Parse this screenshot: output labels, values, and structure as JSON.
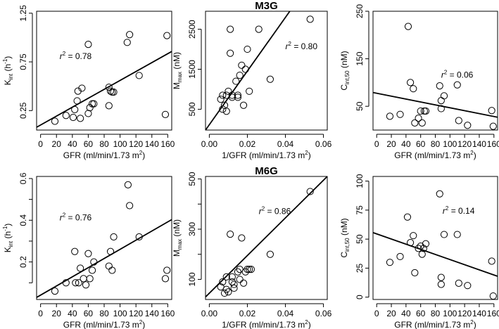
{
  "chart_data": [
    {
      "id": "m3g-kint",
      "type": "scatter",
      "group_title": "",
      "xlabel": {
        "main": "GFR (ml/min/1.73 m",
        "sup": "2",
        "tail": ")"
      },
      "ylabel": {
        "main": "K",
        "sub": "int",
        "tail": " (h",
        "sup": "-1",
        "end": ")"
      },
      "xlim": [
        -5,
        165
      ],
      "ylim": [
        0.05,
        1.27
      ],
      "xticks": [
        0,
        20,
        40,
        60,
        80,
        100,
        120,
        140,
        160
      ],
      "yticks": [
        0.25,
        0.75,
        1.25
      ],
      "yticklabels": [
        "0.25",
        "0.75",
        "1.25"
      ],
      "r2_label": "= 0.78",
      "r2_pos": [
        24,
        0.78
      ],
      "fit": {
        "x": [
          -5,
          165
        ],
        "y": [
          0.079,
          0.857
        ]
      },
      "points": [
        [
          18,
          0.14
        ],
        [
          32,
          0.2
        ],
        [
          41,
          0.18
        ],
        [
          43,
          0.26
        ],
        [
          46,
          0.35
        ],
        [
          47,
          0.45
        ],
        [
          50,
          0.17
        ],
        [
          52,
          0.48
        ],
        [
          60,
          0.93
        ],
        [
          60,
          0.22
        ],
        [
          62,
          0.28
        ],
        [
          65,
          0.32
        ],
        [
          67,
          0.32
        ],
        [
          86,
          0.49
        ],
        [
          88,
          0.45
        ],
        [
          90,
          0.44
        ],
        [
          92,
          0.44
        ],
        [
          86,
          0.3
        ],
        [
          109,
          0.95
        ],
        [
          112,
          1.03
        ],
        [
          124,
          0.61
        ],
        [
          157,
          0.21
        ],
        [
          159,
          1.02
        ]
      ]
    },
    {
      "id": "m3g-mmax",
      "type": "scatter",
      "group_title": "M3G",
      "xlabel": {
        "main": "1/GFR (ml/min/1.73 m",
        "sup": "2",
        "tail": ")"
      },
      "ylabel": {
        "main": "M",
        "sub": "max",
        "tail": " (nM)",
        "sup": "",
        "end": ""
      },
      "xlim": [
        -0.002,
        0.062
      ],
      "ylim": [
        -20,
        2950
      ],
      "xticks": [
        0,
        0.02,
        0.04,
        0.06
      ],
      "xticklabels": [
        "0.00",
        "0.02",
        "0.04",
        "0.06"
      ],
      "yticks": [
        500,
        1500,
        2500
      ],
      "yticklabels": [
        "500",
        "1500",
        "2500"
      ],
      "r2_label": "= 0.80",
      "r2_pos": [
        0.04,
        2000
      ],
      "fit": {
        "x": [
          -0.002,
          0.0423
        ],
        "y": [
          -20,
          2950
        ]
      },
      "points": [
        [
          0.006,
          750
        ],
        [
          0.007,
          850
        ],
        [
          0.007,
          500
        ],
        [
          0.008,
          600
        ],
        [
          0.009,
          450
        ],
        [
          0.009,
          850
        ],
        [
          0.01,
          950
        ],
        [
          0.011,
          2500
        ],
        [
          0.011,
          1900
        ],
        [
          0.012,
          850
        ],
        [
          0.012,
          800
        ],
        [
          0.014,
          1200
        ],
        [
          0.015,
          850
        ],
        [
          0.015,
          800
        ],
        [
          0.016,
          1350
        ],
        [
          0.017,
          1600
        ],
        [
          0.018,
          600
        ],
        [
          0.019,
          1500
        ],
        [
          0.02,
          2000
        ],
        [
          0.021,
          950
        ],
        [
          0.026,
          2500
        ],
        [
          0.032,
          1250
        ],
        [
          0.053,
          2750
        ]
      ]
    },
    {
      "id": "m3g-cint50",
      "type": "scatter",
      "group_title": "",
      "xlabel": {
        "main": "GFR (ml/min/1.73 m",
        "sup": "2",
        "tail": ")"
      },
      "ylabel": {
        "main": "C",
        "sub": "int,50",
        "tail": " (nM)",
        "sup": "",
        "end": ""
      },
      "xlim": [
        -5,
        165
      ],
      "ylim": [
        0,
        250
      ],
      "xticks": [
        0,
        20,
        40,
        60,
        80,
        100,
        120,
        140,
        160
      ],
      "yticks": [
        50,
        150,
        250
      ],
      "yticklabels": [
        "50",
        "150",
        "250"
      ],
      "r2_label": "= 0.06",
      "r2_pos": [
        88,
        110
      ],
      "fit": {
        "x": [
          -5,
          165
        ],
        "y": [
          79,
          27
        ]
      },
      "points": [
        [
          18,
          29
        ],
        [
          32,
          33
        ],
        [
          43,
          218
        ],
        [
          46,
          100
        ],
        [
          50,
          87
        ],
        [
          52,
          15
        ],
        [
          57,
          25
        ],
        [
          60,
          40
        ],
        [
          62,
          15
        ],
        [
          65,
          40
        ],
        [
          67,
          40
        ],
        [
          86,
          93
        ],
        [
          88,
          62
        ],
        [
          88,
          45
        ],
        [
          92,
          72
        ],
        [
          110,
          95
        ],
        [
          112,
          20
        ],
        [
          124,
          10
        ],
        [
          157,
          41
        ],
        [
          159,
          8
        ]
      ]
    },
    {
      "id": "m6g-kint",
      "type": "scatter",
      "group_title": "",
      "xlabel": {
        "main": "GFR (ml/min/1.73 m",
        "sup": "2",
        "tail": ")"
      },
      "ylabel": {
        "main": "K",
        "sub": "int",
        "tail": " (h",
        "sup": "-1",
        "end": ")"
      },
      "xlim": [
        -5,
        165
      ],
      "ylim": [
        0.02,
        0.61
      ],
      "xticks": [
        0,
        20,
        40,
        60,
        80,
        100,
        120,
        140,
        160
      ],
      "yticks": [
        0.1,
        0.2,
        0.3,
        0.4,
        0.5,
        0.6
      ],
      "yticklabels": [
        "",
        "0.2",
        "",
        "0.4",
        "",
        "0.6"
      ],
      "r2_label": "= 0.76",
      "r2_pos": [
        24,
        0.4
      ],
      "fit": {
        "x": [
          -5,
          165
        ],
        "y": [
          0.03,
          0.403
        ]
      },
      "points": [
        [
          18,
          0.06
        ],
        [
          32,
          0.1
        ],
        [
          43,
          0.25
        ],
        [
          44,
          0.1
        ],
        [
          48,
          0.1
        ],
        [
          50,
          0.17
        ],
        [
          54,
          0.12
        ],
        [
          57,
          0.09
        ],
        [
          60,
          0.24
        ],
        [
          62,
          0.12
        ],
        [
          65,
          0.16
        ],
        [
          67,
          0.2
        ],
        [
          86,
          0.18
        ],
        [
          88,
          0.25
        ],
        [
          90,
          0.16
        ],
        [
          92,
          0.32
        ],
        [
          110,
          0.57
        ],
        [
          112,
          0.47
        ],
        [
          124,
          0.32
        ],
        [
          157,
          0.12
        ],
        [
          159,
          0.16
        ]
      ]
    },
    {
      "id": "m6g-mmax",
      "type": "scatter",
      "group_title": "M6G",
      "xlabel": {
        "main": "1/GFR (ml/min/1.73 m",
        "sup": "2",
        "tail": ")"
      },
      "ylabel": {
        "main": "M",
        "sub": "max",
        "tail": " (nM)",
        "sup": "",
        "end": ""
      },
      "xlim": [
        -0.002,
        0.062
      ],
      "ylim": [
        20,
        510
      ],
      "xticks": [
        0,
        0.02,
        0.04,
        0.06
      ],
      "xticklabels": [
        "0.00",
        "0.02",
        "0.04",
        "0.06"
      ],
      "yticks": [
        100,
        200,
        300,
        400,
        500
      ],
      "yticklabels": [
        "100",
        "",
        "300",
        "",
        "500"
      ],
      "r2_label": "= 0.86",
      "r2_pos": [
        0.026,
        360
      ],
      "fit": {
        "x": [
          -0.002,
          0.062
        ],
        "y": [
          30,
          510
        ]
      },
      "points": [
        [
          0.006,
          70
        ],
        [
          0.007,
          90
        ],
        [
          0.008,
          45
        ],
        [
          0.009,
          110
        ],
        [
          0.009,
          60
        ],
        [
          0.01,
          50
        ],
        [
          0.011,
          280
        ],
        [
          0.012,
          90
        ],
        [
          0.012,
          110
        ],
        [
          0.013,
          80
        ],
        [
          0.013,
          65
        ],
        [
          0.015,
          130
        ],
        [
          0.016,
          140
        ],
        [
          0.016,
          100
        ],
        [
          0.017,
          265
        ],
        [
          0.018,
          85
        ],
        [
          0.019,
          130
        ],
        [
          0.02,
          140
        ],
        [
          0.021,
          140
        ],
        [
          0.022,
          140
        ],
        [
          0.032,
          200
        ],
        [
          0.053,
          450
        ]
      ]
    },
    {
      "id": "m6g-cint50",
      "type": "scatter",
      "group_title": "",
      "xlabel": {
        "main": "GFR (ml/min/1.73 m",
        "sup": "2",
        "tail": ")"
      },
      "ylabel": {
        "main": "C",
        "sub": "int,50",
        "tail": " (nM)",
        "sup": "",
        "end": ""
      },
      "xlim": [
        -5,
        165
      ],
      "ylim": [
        -2,
        104
      ],
      "xticks": [
        0,
        20,
        40,
        60,
        80,
        100,
        120,
        140,
        160
      ],
      "yticks": [
        0,
        25,
        50,
        75,
        100
      ],
      "yticklabels": [
        "0",
        "25",
        "50",
        "75",
        "100"
      ],
      "r2_label": "= 0.14",
      "r2_pos": [
        90,
        72
      ],
      "fit": {
        "x": [
          -5,
          165
        ],
        "y": [
          55.6,
          18
        ]
      },
      "points": [
        [
          18,
          30
        ],
        [
          32,
          35
        ],
        [
          42,
          69
        ],
        [
          46,
          47
        ],
        [
          50,
          53
        ],
        [
          52,
          21
        ],
        [
          57,
          42
        ],
        [
          60,
          44
        ],
        [
          62,
          37
        ],
        [
          64,
          42
        ],
        [
          67,
          46
        ],
        [
          86,
          89
        ],
        [
          88,
          17
        ],
        [
          88,
          11
        ],
        [
          92,
          54
        ],
        [
          110,
          54
        ],
        [
          112,
          12
        ],
        [
          124,
          10
        ],
        [
          157,
          31
        ],
        [
          159,
          1
        ]
      ]
    }
  ]
}
